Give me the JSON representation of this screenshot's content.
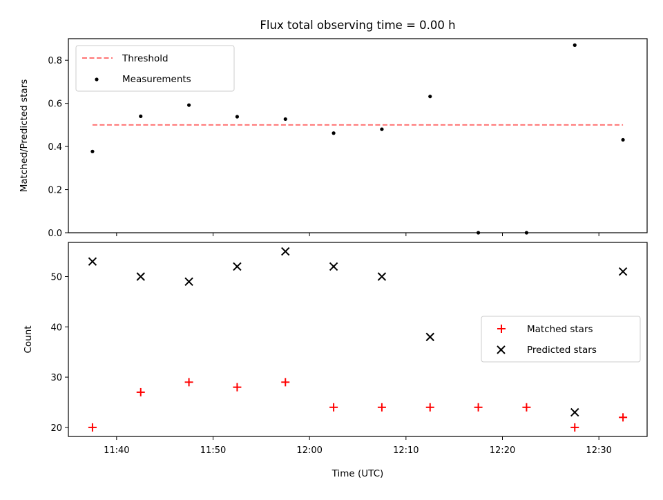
{
  "chart_data": [
    {
      "type": "scatter",
      "title": "Flux total observing time = 0.00 h",
      "xlabel": "",
      "ylabel": "Matched/Predicted stars",
      "ylim": [
        0.0,
        0.9
      ],
      "yticks": [
        0.0,
        0.2,
        0.4,
        0.6,
        0.8
      ],
      "ytick_labels": [
        "0.0",
        "0.2",
        "0.4",
        "0.6",
        "0.8"
      ],
      "x_time": [
        "11:37:30",
        "11:42:30",
        "11:47:30",
        "11:52:30",
        "11:57:30",
        "12:02:30",
        "12:07:30",
        "12:12:30",
        "12:17:30",
        "12:22:30",
        "12:27:30",
        "12:32:30"
      ],
      "series": [
        {
          "name": "Threshold",
          "kind": "line",
          "style": "dashed",
          "color": "#ff7373",
          "x_range": [
            "11:37:30",
            "12:32:30"
          ],
          "value": 0.5
        },
        {
          "name": "Measurements",
          "kind": "scatter",
          "marker": "dot",
          "color": "#000000",
          "values": [
            0.377,
            0.54,
            0.592,
            0.538,
            0.527,
            0.462,
            0.48,
            0.632,
            0.0,
            0.0,
            0.87,
            0.431
          ]
        }
      ],
      "legend_position": "upper-left",
      "grid": false
    },
    {
      "type": "scatter",
      "title": "",
      "xlabel": "Time (UTC)",
      "ylabel": "Count",
      "ylim": [
        18.2,
        56.8
      ],
      "yticks": [
        20,
        30,
        40,
        50
      ],
      "ytick_labels": [
        "20",
        "30",
        "40",
        "50"
      ],
      "xlim": [
        "11:35:00",
        "12:35:00"
      ],
      "xticks": [
        "11:40",
        "11:50",
        "12:00",
        "12:10",
        "12:20",
        "12:30"
      ],
      "x_time": [
        "11:37:30",
        "11:42:30",
        "11:47:30",
        "11:52:30",
        "11:57:30",
        "12:02:30",
        "12:07:30",
        "12:12:30",
        "12:17:30",
        "12:22:30",
        "12:27:30",
        "12:32:30"
      ],
      "series": [
        {
          "name": "Matched stars",
          "kind": "scatter",
          "marker": "plus",
          "color": "#ff0000",
          "values": [
            20,
            27,
            29,
            28,
            29,
            24,
            24,
            24,
            24,
            24,
            20,
            22
          ]
        },
        {
          "name": "Predicted stars",
          "kind": "scatter",
          "marker": "x",
          "color": "#000000",
          "values": [
            53,
            50,
            49,
            52,
            55,
            52,
            50,
            38,
            null,
            null,
            23,
            51
          ]
        }
      ],
      "legend_position": "center-right",
      "grid": false
    }
  ]
}
